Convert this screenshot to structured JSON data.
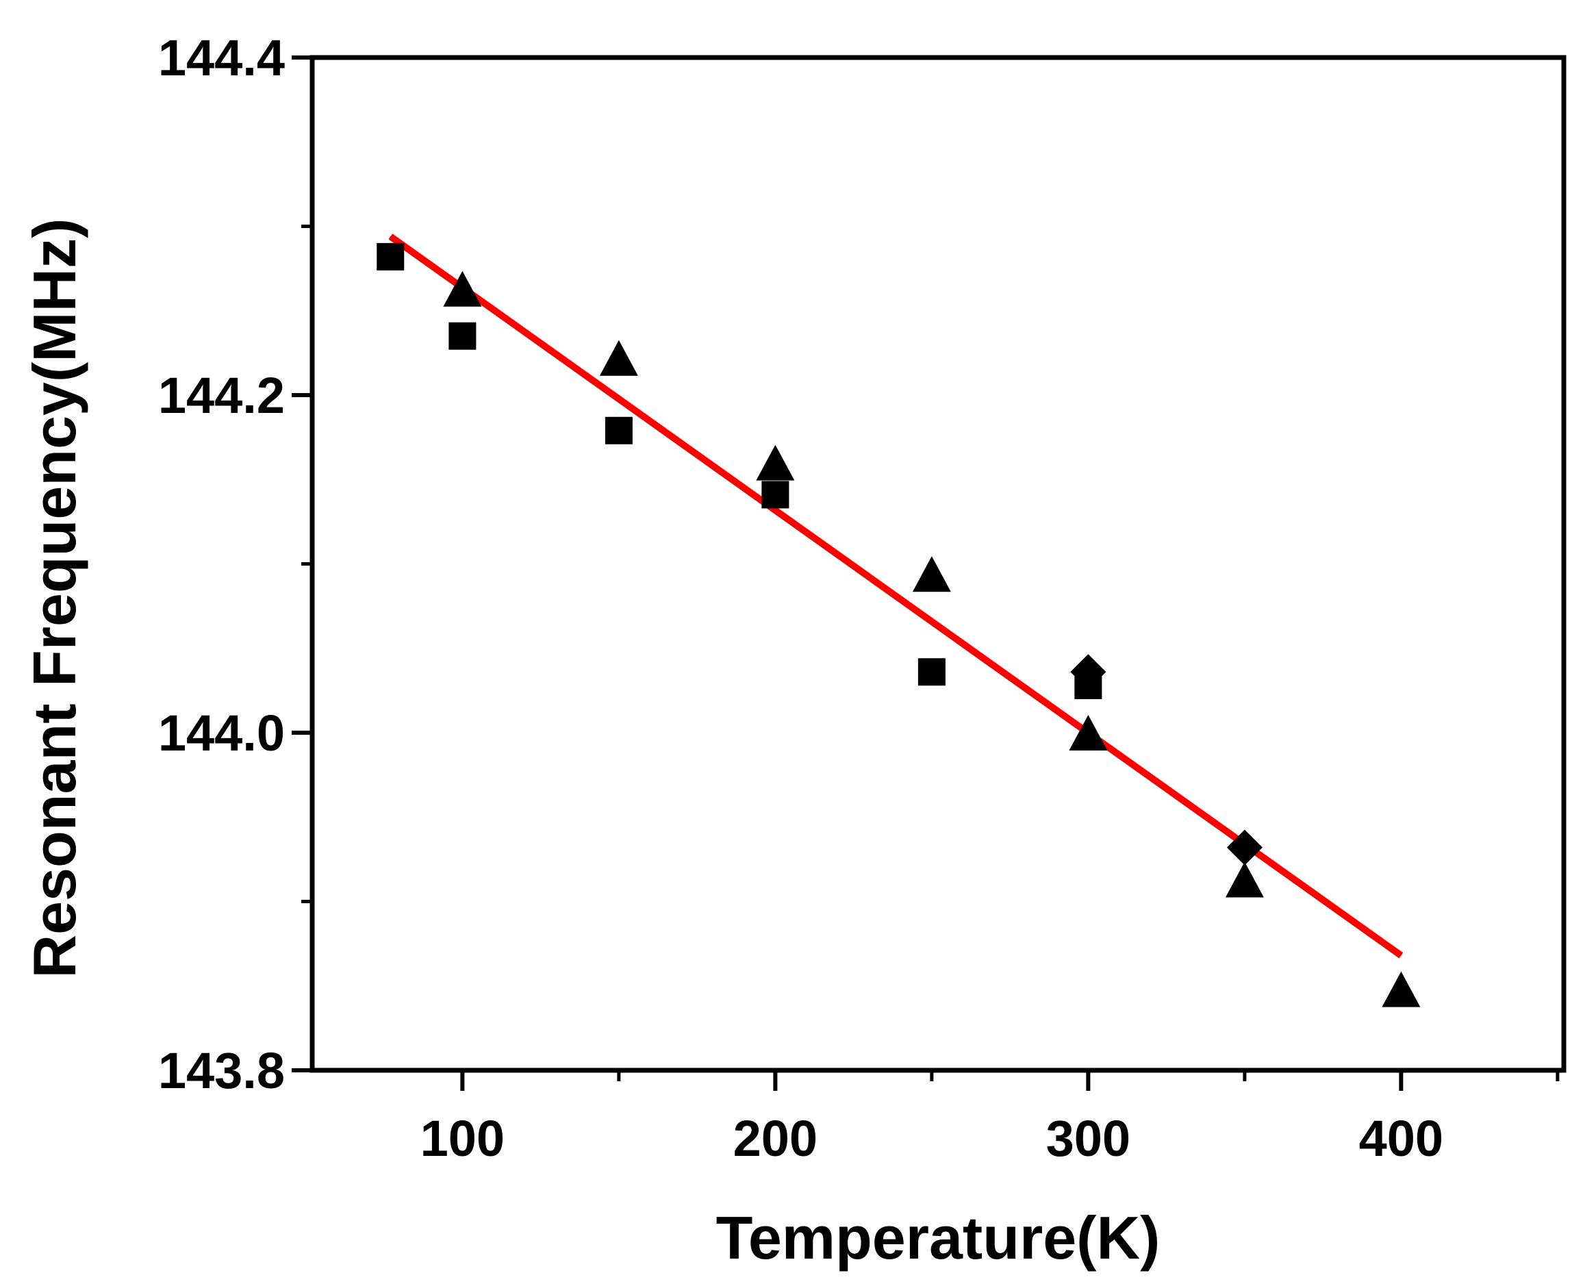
{
  "chart_data": {
    "type": "scatter",
    "title": "",
    "xlabel": "Temperature(K)",
    "ylabel": "Resonant Frequency(MHz)",
    "xlim": [
      52,
      452
    ],
    "ylim": [
      143.8,
      144.4
    ],
    "xticks": [
      100,
      200,
      300,
      400
    ],
    "xtick_labels": [
      "100",
      "200",
      "300",
      "400"
    ],
    "yticks": [
      143.8,
      144.0,
      144.2,
      144.4
    ],
    "ytick_labels": [
      "143.8",
      "144.0",
      "144.2",
      "144.4"
    ],
    "grid": false,
    "series": [
      {
        "name": "square",
        "marker": "square",
        "color": "#000000",
        "points": [
          {
            "x": 77,
            "y": 144.282
          },
          {
            "x": 100,
            "y": 144.235
          },
          {
            "x": 150,
            "y": 144.179
          },
          {
            "x": 200,
            "y": 144.141
          },
          {
            "x": 250,
            "y": 144.036
          },
          {
            "x": 300,
            "y": 144.028
          }
        ]
      },
      {
        "name": "triangle",
        "marker": "triangle",
        "color": "#000000",
        "points": [
          {
            "x": 100,
            "y": 144.263
          },
          {
            "x": 150,
            "y": 144.222
          },
          {
            "x": 200,
            "y": 144.16
          },
          {
            "x": 250,
            "y": 144.094
          },
          {
            "x": 300,
            "y": 144.0
          },
          {
            "x": 350,
            "y": 143.913
          },
          {
            "x": 400,
            "y": 143.848
          }
        ]
      },
      {
        "name": "diamond",
        "marker": "diamond",
        "color": "#000000",
        "points": [
          {
            "x": 300,
            "y": 144.036
          },
          {
            "x": 350,
            "y": 143.932
          }
        ]
      },
      {
        "name": "linear fit",
        "type": "line",
        "color": "#ff0000",
        "points": [
          {
            "x": 77,
            "y": 144.294
          },
          {
            "x": 400,
            "y": 143.868
          }
        ]
      }
    ]
  }
}
